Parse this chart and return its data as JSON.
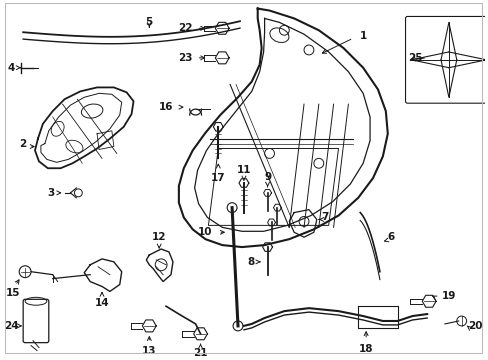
{
  "background_color": "#ffffff",
  "fig_width": 4.89,
  "fig_height": 3.6,
  "dpi": 100,
  "line_color": "#1a1a1a",
  "label_color": "#000000",
  "label_fontsize": 7.5
}
